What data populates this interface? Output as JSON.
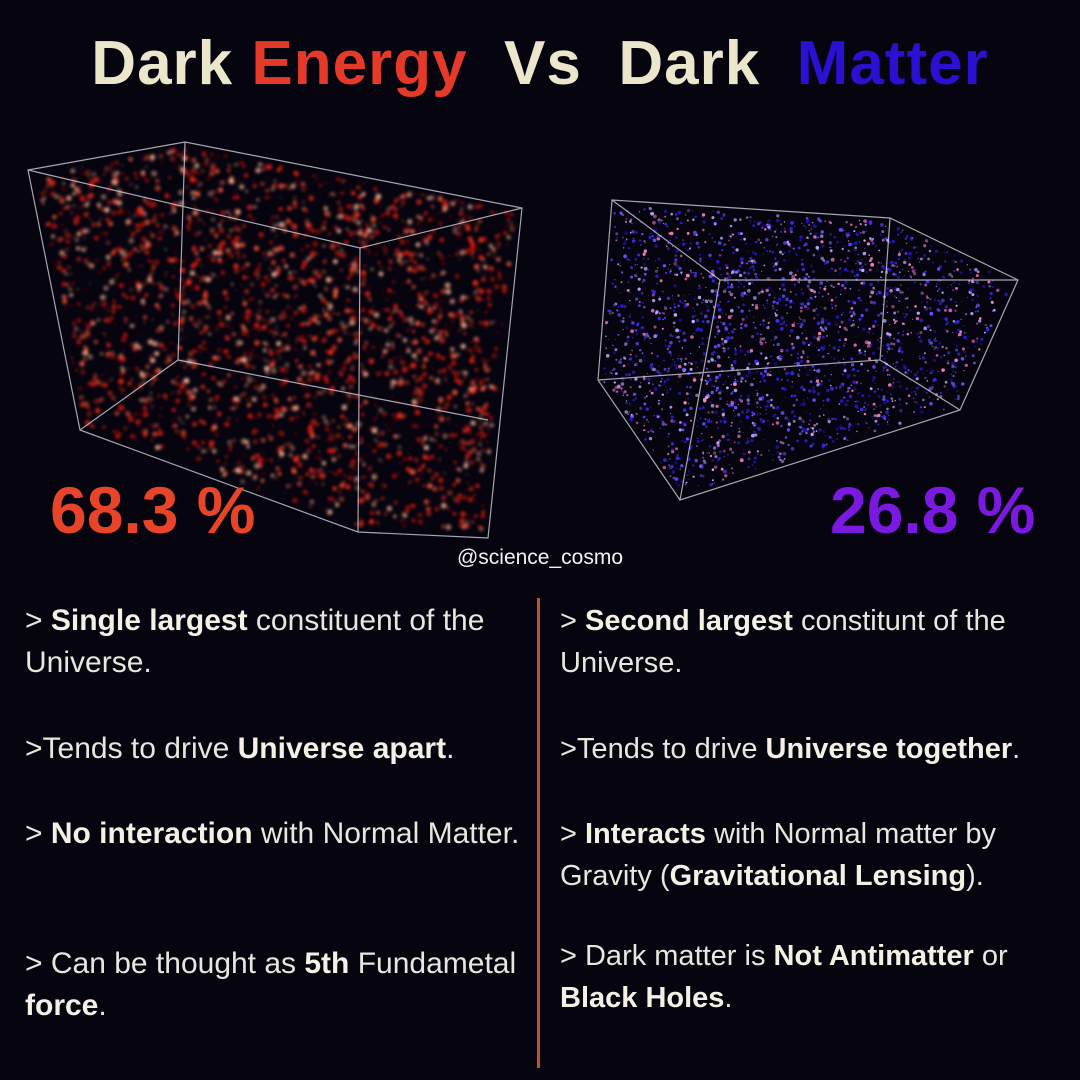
{
  "title": [
    {
      "text": "Dark ",
      "color": "#ece6cc"
    },
    {
      "text": "Energy",
      "color": "#e53a2a"
    },
    {
      "text": "  Vs  ",
      "color": "#ece6cc"
    },
    {
      "text": "Dark  ",
      "color": "#ece6cc"
    },
    {
      "text": "Matter",
      "color": "#2a10d0"
    }
  ],
  "dark_energy": {
    "percent": "68.3 %",
    "bullets": [
      [
        {
          "text": "> ",
          "bold": false
        },
        {
          "text": "Single largest",
          "bold": true
        },
        {
          "text": " constituent of the Universe.",
          "bold": false
        }
      ],
      [
        {
          "text": ">Tends to drive ",
          "bold": false
        },
        {
          "text": "Universe apart",
          "bold": true
        },
        {
          "text": ".",
          "bold": false
        }
      ],
      [
        {
          "text": "> ",
          "bold": false
        },
        {
          "text": "No interaction",
          "bold": true
        },
        {
          "text": " with Normal Matter.",
          "bold": false
        }
      ],
      [
        {
          "text": "> Can be thought as ",
          "bold": false
        },
        {
          "text": "5th",
          "bold": true
        },
        {
          "text": " Fundametal ",
          "bold": false
        },
        {
          "text": "force",
          "bold": true
        },
        {
          "text": ".",
          "bold": false
        }
      ]
    ]
  },
  "dark_matter": {
    "percent": "26.8 %",
    "bullets": [
      [
        {
          "text": "> ",
          "bold": false
        },
        {
          "text": "Second largest",
          "bold": true
        },
        {
          "text": " constitunt of the Universe.",
          "bold": false
        }
      ],
      [
        {
          "text": ">Tends to drive ",
          "bold": false
        },
        {
          "text": "Universe together",
          "bold": true
        },
        {
          "text": ".",
          "bold": false
        }
      ],
      [
        {
          "text": "> ",
          "bold": false
        },
        {
          "text": "Interacts",
          "bold": true
        },
        {
          "text": " with Normal matter by Gravity (",
          "bold": false
        },
        {
          "text": "Gravitational Lensing",
          "bold": true
        },
        {
          "text": ").",
          "bold": false
        }
      ],
      [
        {
          "text": "> Dark matter is ",
          "bold": false
        },
        {
          "text": "Not Antimatter",
          "bold": true
        },
        {
          "text": " or ",
          "bold": false
        },
        {
          "text": "Black Holes",
          "bold": true
        },
        {
          "text": ".",
          "bold": false
        }
      ]
    ]
  },
  "handle": "@science_cosmo"
}
